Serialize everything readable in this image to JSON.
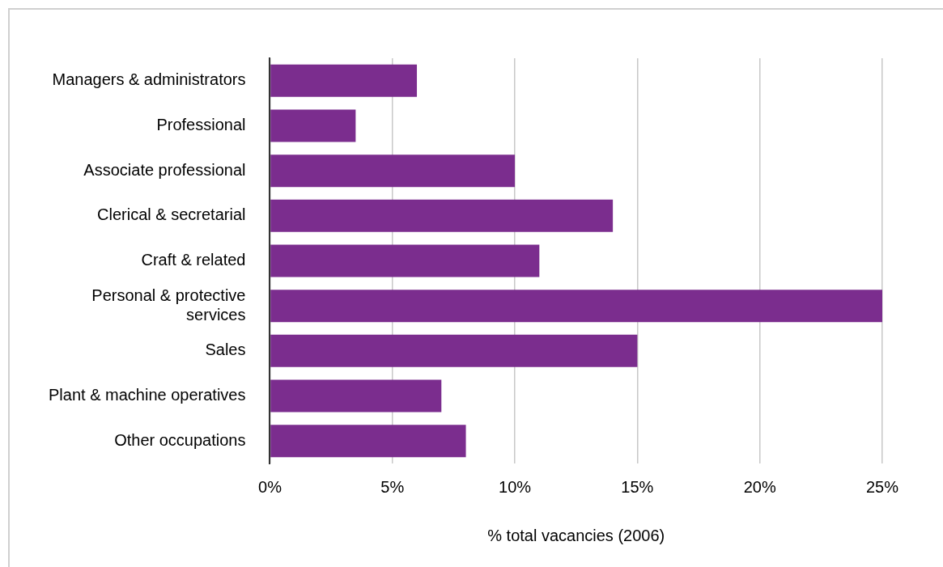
{
  "chart_data": {
    "type": "bar",
    "orientation": "horizontal",
    "xlabel": "% total vacancies (2006)",
    "categories": [
      "Managers & administrators",
      "Professional",
      "Associate professional",
      "Clerical & secretarial",
      "Craft & related",
      "Personal & protective services",
      "Sales",
      "Plant & machine operatives",
      "Other occupations"
    ],
    "values": [
      6,
      3.5,
      10,
      14,
      11,
      25,
      15,
      7,
      8
    ],
    "color": "#7b2d8e",
    "xlim": [
      0,
      25
    ],
    "xticks": [
      {
        "value": 0,
        "label": "0%"
      },
      {
        "value": 5,
        "label": "5%"
      },
      {
        "value": 10,
        "label": "10%"
      },
      {
        "value": 15,
        "label": "15%"
      },
      {
        "value": 20,
        "label": "20%"
      },
      {
        "value": 25,
        "label": "25%"
      }
    ],
    "grid": "x",
    "legend": false
  }
}
